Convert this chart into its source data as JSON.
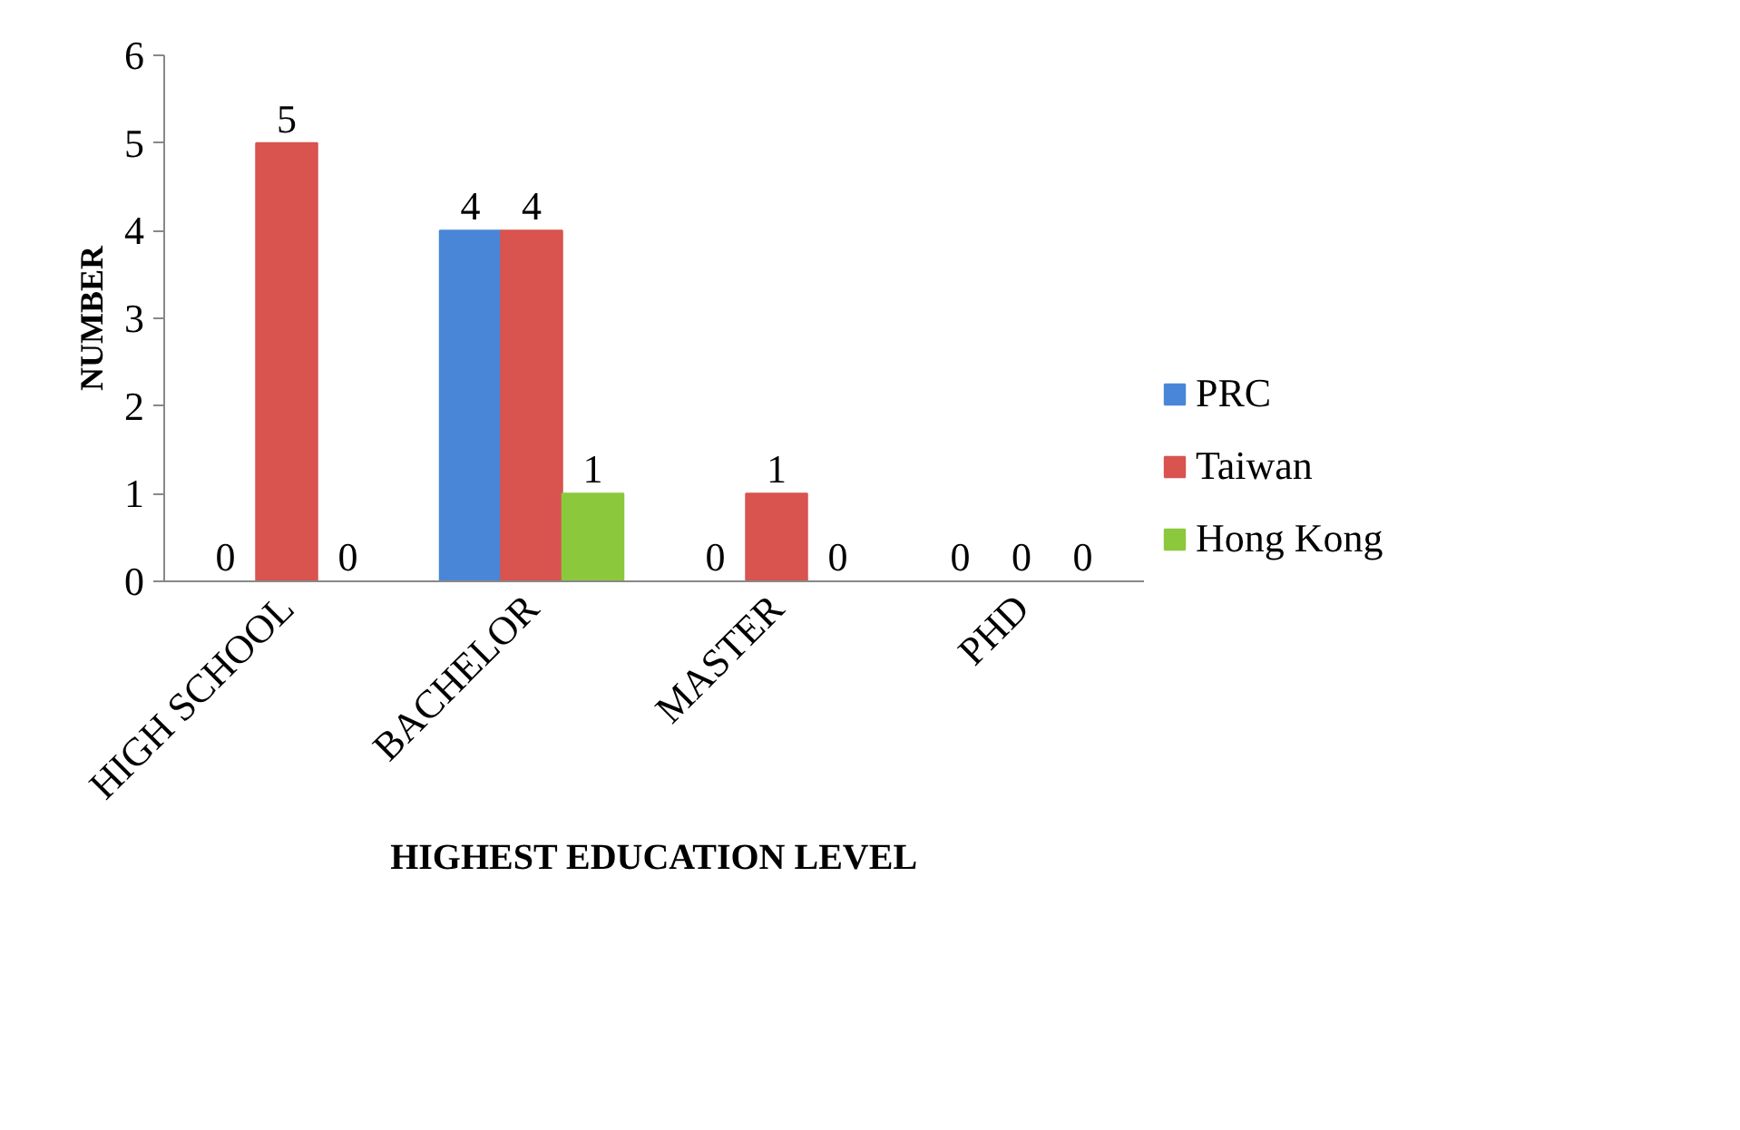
{
  "chart_data": {
    "type": "bar",
    "xlabel": "HIGHEST EDUCATION LEVEL",
    "ylabel": "NUMBER",
    "categories": [
      "HIGH SCHOOL",
      "BACHELOR",
      "MASTER",
      "PHD"
    ],
    "series": [
      {
        "name": "PRC",
        "color": "#4a86d8",
        "values": [
          0,
          4,
          0,
          0
        ]
      },
      {
        "name": "Taiwan",
        "color": "#d9534f",
        "values": [
          5,
          4,
          1,
          0
        ]
      },
      {
        "name": "Hong Kong",
        "color": "#8cc83c",
        "values": [
          0,
          1,
          0,
          0
        ]
      }
    ],
    "ylim": [
      0,
      6
    ],
    "yticks": [
      0,
      1,
      2,
      3,
      4,
      5,
      6
    ],
    "grid": false,
    "legend": "right",
    "data_labels": true
  }
}
